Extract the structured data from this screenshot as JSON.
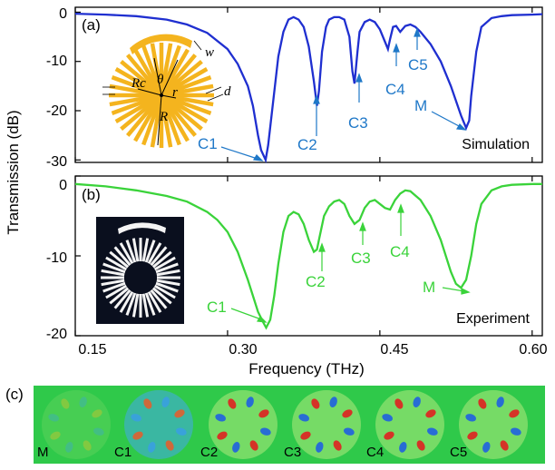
{
  "colors": {
    "simulation": "#1f2fd0",
    "experiment": "#3ad33a",
    "sim_annotation": "#1f78c8",
    "structure": "#f4b41e",
    "field_bg": "#2fc94a"
  },
  "chart_data": [
    {
      "panel": "(a)",
      "type": "line",
      "series": [
        {
          "x": [
            0.15,
            0.18,
            0.21,
            0.24,
            0.26,
            0.28,
            0.3,
            0.31,
            0.32,
            0.325,
            0.33,
            0.333,
            0.3375,
            0.34,
            0.345,
            0.35,
            0.355,
            0.36,
            0.365,
            0.37,
            0.375,
            0.38,
            0.385,
            0.388,
            0.39,
            0.393,
            0.397,
            0.4,
            0.405,
            0.41,
            0.415,
            0.42,
            0.423,
            0.425,
            0.428,
            0.43,
            0.435,
            0.44,
            0.445,
            0.45,
            0.455,
            0.458,
            0.46,
            0.463,
            0.466,
            0.47,
            0.475,
            0.48,
            0.485,
            0.49,
            0.5,
            0.51,
            0.52,
            0.525,
            0.53,
            0.535,
            0.538,
            0.54,
            0.545,
            0.55,
            0.56,
            0.57,
            0.58,
            0.6,
            0.61
          ],
          "y": [
            -0.3,
            -0.5,
            -0.8,
            -1.5,
            -2.5,
            -4.2,
            -7.5,
            -10.5,
            -15,
            -19,
            -25,
            -28,
            -30,
            -27,
            -18,
            -9,
            -4,
            -1.5,
            -1,
            -1.5,
            -3,
            -7,
            -14,
            -19,
            -16,
            -8,
            -3,
            -1.5,
            -1,
            -1,
            -1.5,
            -5,
            -12,
            -14.5,
            -8,
            -4,
            -2,
            -1.5,
            -2,
            -3.5,
            -6,
            -7.5,
            -5.5,
            -3,
            -2.8,
            -4,
            -2.8,
            -2.5,
            -3,
            -4,
            -6.5,
            -10,
            -15,
            -18,
            -21,
            -23.5,
            -22,
            -17,
            -8,
            -3,
            -1.2,
            -0.8,
            -0.6,
            -0.5,
            -0.4
          ]
        }
      ],
      "xlim": [
        0.15,
        0.61
      ],
      "ylim": [
        -30.5,
        1
      ],
      "yticks": [
        0,
        -10,
        -20,
        -30
      ],
      "annotations": [
        "C1",
        "C2",
        "C3",
        "C4",
        "C5",
        "M"
      ],
      "note": "Simulation"
    },
    {
      "panel": "(b)",
      "type": "line",
      "series": [
        {
          "x": [
            0.15,
            0.18,
            0.21,
            0.24,
            0.26,
            0.28,
            0.29,
            0.3,
            0.31,
            0.32,
            0.325,
            0.33,
            0.335,
            0.338,
            0.342,
            0.346,
            0.35,
            0.355,
            0.36,
            0.365,
            0.37,
            0.375,
            0.38,
            0.385,
            0.388,
            0.39,
            0.395,
            0.4,
            0.405,
            0.41,
            0.415,
            0.42,
            0.425,
            0.43,
            0.435,
            0.44,
            0.445,
            0.45,
            0.455,
            0.46,
            0.465,
            0.47,
            0.475,
            0.48,
            0.49,
            0.5,
            0.51,
            0.515,
            0.52,
            0.525,
            0.53,
            0.535,
            0.54,
            0.545,
            0.55,
            0.56,
            0.57,
            0.58,
            0.6,
            0.61
          ],
          "y": [
            -1,
            -1.3,
            -1.8,
            -2.5,
            -3.2,
            -4.5,
            -5.5,
            -7,
            -9.5,
            -13,
            -15,
            -17,
            -18.3,
            -19,
            -18,
            -15,
            -11,
            -7,
            -5,
            -4.5,
            -4.8,
            -6,
            -8,
            -9.5,
            -9.2,
            -8,
            -5,
            -3.8,
            -3.2,
            -3,
            -3.5,
            -5,
            -6,
            -5.5,
            -4,
            -3.2,
            -3,
            -3.5,
            -4,
            -4.2,
            -3,
            -2.2,
            -1.8,
            -1.9,
            -3,
            -5,
            -8,
            -10,
            -12,
            -13.5,
            -14,
            -13,
            -10,
            -6,
            -3.5,
            -1.8,
            -1.3,
            -1.1,
            -1,
            -1
          ]
        }
      ],
      "xlim": [
        0.15,
        0.61
      ],
      "ylim": [
        -20,
        0
      ],
      "yticks": [
        0,
        -10,
        -20
      ],
      "annotations": [
        "C1",
        "C2",
        "C3",
        "C4",
        "M"
      ],
      "note": "Experiment"
    }
  ],
  "axes": {
    "ylabel": "Transmission (dB)",
    "xlabel": "Frequency (THz)",
    "xticks": [
      "0.15",
      "0.30",
      "0.45",
      "0.60"
    ],
    "yticks_a": [
      "0",
      "-10",
      "-20",
      "-30"
    ],
    "yticks_b": [
      "0",
      "-10",
      "-20"
    ]
  },
  "labels": {
    "panel_a": "(a)",
    "panel_b": "(b)",
    "panel_c": "(c)",
    "simulation": "Simulation",
    "experiment": "Experiment",
    "ann_a": [
      "C1",
      "C2",
      "C3",
      "C4",
      "C5",
      "M"
    ],
    "ann_b": [
      "C1",
      "C2",
      "C3",
      "C4",
      "M"
    ],
    "geometry": {
      "w": "w",
      "theta": "θ",
      "Rc": "Rc",
      "r": "r",
      "d": "d",
      "R": "R"
    },
    "modes": [
      "M",
      "C1",
      "C2",
      "C3",
      "C4",
      "C5"
    ]
  }
}
